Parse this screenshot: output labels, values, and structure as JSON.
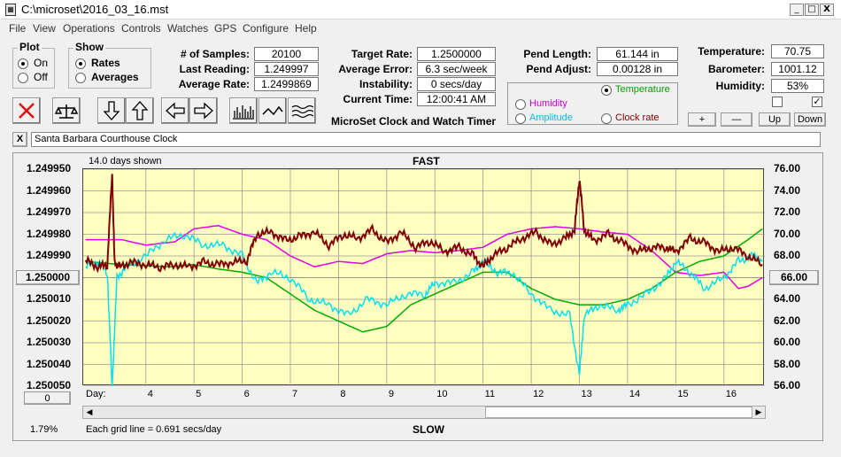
{
  "window": {
    "title": "C:\\microset\\2016_03_16.mst",
    "min": "_",
    "max": "□",
    "close": "X"
  },
  "menu": [
    "File",
    "View",
    "Operations",
    "Controls",
    "Watches",
    "GPS",
    "Configure",
    "Help"
  ],
  "plot_group": {
    "title": "Plot",
    "on": "On",
    "off": "Off",
    "selected": "On"
  },
  "show_group": {
    "title": "Show",
    "rates": "Rates",
    "averages": "Averages",
    "selected": "Rates"
  },
  "stats": {
    "samples_label": "# of Samples:",
    "samples": "20100",
    "last_label": "Last Reading:",
    "last": "1.249997",
    "avg_label": "Average Rate:",
    "avg": "1.2499869",
    "target_label": "Target Rate:",
    "target": "1.2500000",
    "error_label": "Average Error:",
    "error": "6.3 sec/week",
    "instab_label": "Instability:",
    "instab": "0 secs/day",
    "time_label": "Current Time:",
    "time": "12:00:41 AM",
    "app_name": "MicroSet Clock and Watch Timer",
    "pend_len_label": "Pend Length:",
    "pend_len": "61.144 in",
    "pend_adj_label": "Pend Adjust:",
    "pend_adj": "0.00128 in",
    "temp_label": "Temperature:",
    "temp": "70.75",
    "baro_label": "Barometer:",
    "baro": "1001.12",
    "hum_label": "Humidity:",
    "hum": "53%"
  },
  "sensor_select": {
    "temperature": "Temperature",
    "humidity": "Humidity",
    "amplitude": "Amplitude",
    "clock_rate": "Clock rate",
    "selected": "Temperature"
  },
  "sensor_buttons": {
    "plus": "+",
    "minus": "—",
    "up": "Up",
    "down": "Down"
  },
  "checkboxes": [
    {
      "checked": false
    },
    {
      "checked": true
    }
  ],
  "clock_name": "Santa Barbara Courthouse Clock",
  "clear": "X",
  "chart_data": {
    "type": "line",
    "title": "FAST",
    "bottom_label": "SLOW",
    "days_shown": "14.0 days shown",
    "grid_note": "Each grid line = 0.691 secs/day",
    "percent": "1.79%",
    "center_left": "1.250000",
    "center_right": "66.00",
    "scroll_pos": "0",
    "xlabel": "Day:",
    "x_ticks": [
      4,
      5,
      6,
      7,
      8,
      9,
      10,
      11,
      12,
      13,
      14,
      15,
      16
    ],
    "xlim": [
      2.7,
      16.85
    ],
    "y_left_ticks": [
      "1.249950",
      "1.249960",
      "1.249970",
      "1.249980",
      "1.249990",
      "1.250000",
      "1.250010",
      "1.250020",
      "1.250030",
      "1.250040",
      "1.250050"
    ],
    "y_right_ticks": [
      "76.00",
      "74.00",
      "72.00",
      "70.00",
      "68.00",
      "66.00",
      "64.00",
      "62.00",
      "60.00",
      "58.00",
      "56.00"
    ],
    "ylim_rate": [
      1.24995,
      1.25005
    ],
    "ylim_temp": [
      56,
      76
    ],
    "colors": {
      "clock_rate": "#800000",
      "temperature": "#00aa00",
      "humidity": "#e000e0",
      "amplitude": "#00e0f0",
      "plot_bg": "#ffffc0"
    },
    "series": [
      {
        "key": "clock_rate",
        "unit": "rate",
        "x": [
          2.75,
          3.0,
          3.2,
          3.3,
          3.35,
          3.45,
          3.7,
          4.0,
          4.3,
          4.6,
          4.9,
          5.2,
          5.5,
          5.8,
          6.1,
          6.3,
          6.6,
          6.9,
          7.2,
          7.5,
          7.8,
          8.1,
          8.4,
          8.7,
          9.0,
          9.3,
          9.6,
          9.9,
          10.2,
          10.5,
          10.8,
          11.0,
          11.2,
          11.5,
          11.8,
          12.1,
          12.4,
          12.7,
          12.9,
          13.0,
          13.1,
          13.3,
          13.6,
          13.9,
          14.2,
          14.5,
          14.8,
          15.0,
          15.3,
          15.6,
          15.9,
          16.2,
          16.5,
          16.8
        ],
        "y": [
          1.249992,
          1.249995,
          1.249994,
          1.249952,
          1.249993,
          1.249995,
          1.249993,
          1.249994,
          1.249995,
          1.249994,
          1.249995,
          1.249993,
          1.249994,
          1.249993,
          1.249992,
          1.24998,
          1.249979,
          1.249983,
          1.249981,
          1.249979,
          1.249985,
          1.24998,
          1.249982,
          1.249978,
          1.249984,
          1.249979,
          1.249986,
          1.249983,
          1.249988,
          1.249986,
          1.24999,
          1.249995,
          1.24999,
          1.249986,
          1.249982,
          1.249979,
          1.249985,
          1.249982,
          1.249978,
          1.249954,
          1.249978,
          1.249983,
          1.24998,
          1.249984,
          1.249988,
          1.249986,
          1.249986,
          1.249988,
          1.249982,
          1.249984,
          1.249988,
          1.249986,
          1.24999,
          1.249994
        ]
      },
      {
        "key": "temperature",
        "unit": "temp",
        "x": [
          2.75,
          3.5,
          4.5,
          5.0,
          5.5,
          6.0,
          6.5,
          7.0,
          7.5,
          8.0,
          8.5,
          9.0,
          9.5,
          10.0,
          10.5,
          11.0,
          11.5,
          12.0,
          12.5,
          13.0,
          13.5,
          14.0,
          14.5,
          15.0,
          15.5,
          16.0,
          16.5,
          16.8
        ],
        "y": [
          67.5,
          67.2,
          67.0,
          67.2,
          66.8,
          66.5,
          66.0,
          64.5,
          63.0,
          62.0,
          61.0,
          61.5,
          63.5,
          64.5,
          65.5,
          66.5,
          66.5,
          65.0,
          64.0,
          63.5,
          63.5,
          64.0,
          65.0,
          66.5,
          67.5,
          68.0,
          69.5,
          70.5
        ]
      },
      {
        "key": "humidity",
        "unit": "temp",
        "x": [
          2.75,
          3.5,
          4.0,
          4.6,
          5.0,
          5.5,
          6.0,
          6.5,
          7.0,
          7.5,
          8.0,
          8.5,
          9.0,
          9.5,
          10.0,
          10.5,
          11.0,
          11.5,
          12.0,
          12.5,
          13.0,
          13.5,
          14.0,
          14.5,
          15.0,
          15.5,
          16.0,
          16.3,
          16.5,
          16.8
        ],
        "y": [
          69.5,
          69.5,
          69.0,
          69.3,
          70.5,
          70.8,
          70.0,
          69.5,
          68.0,
          67.0,
          67.5,
          67.3,
          68.2,
          68.5,
          68.3,
          68.5,
          68.8,
          70.0,
          70.5,
          70.7,
          70.5,
          70.2,
          70.0,
          68.5,
          66.5,
          66.2,
          66.5,
          65.0,
          65.2,
          66.0
        ]
      },
      {
        "key": "amplitude",
        "unit": "temp",
        "x": [
          2.75,
          3.0,
          3.2,
          3.3,
          3.4,
          3.6,
          4.0,
          4.4,
          4.8,
          5.2,
          5.6,
          6.0,
          6.3,
          6.6,
          7.0,
          7.4,
          7.8,
          8.2,
          8.6,
          9.0,
          9.4,
          9.8,
          10.0,
          10.4,
          10.8,
          11.0,
          11.3,
          11.6,
          12.0,
          12.4,
          12.8,
          13.0,
          13.1,
          13.4,
          13.8,
          14.0,
          14.4,
          14.8,
          15.0,
          15.3,
          15.6,
          16.0,
          16.3,
          16.6,
          16.8
        ],
        "y": [
          67.0,
          67.5,
          66.5,
          56.0,
          66.0,
          67.0,
          68.0,
          69.5,
          70.0,
          69.0,
          69.0,
          68.0,
          65.5,
          66.5,
          66.0,
          64.0,
          63.5,
          62.5,
          64.0,
          63.5,
          64.5,
          64.5,
          65.5,
          65.5,
          66.5,
          67.5,
          66.5,
          66.5,
          64.5,
          63.0,
          62.5,
          57.0,
          62.5,
          63.5,
          63.0,
          63.5,
          64.5,
          66.0,
          67.5,
          66.5,
          65.0,
          66.0,
          67.5,
          68.0,
          67.5
        ]
      }
    ]
  }
}
